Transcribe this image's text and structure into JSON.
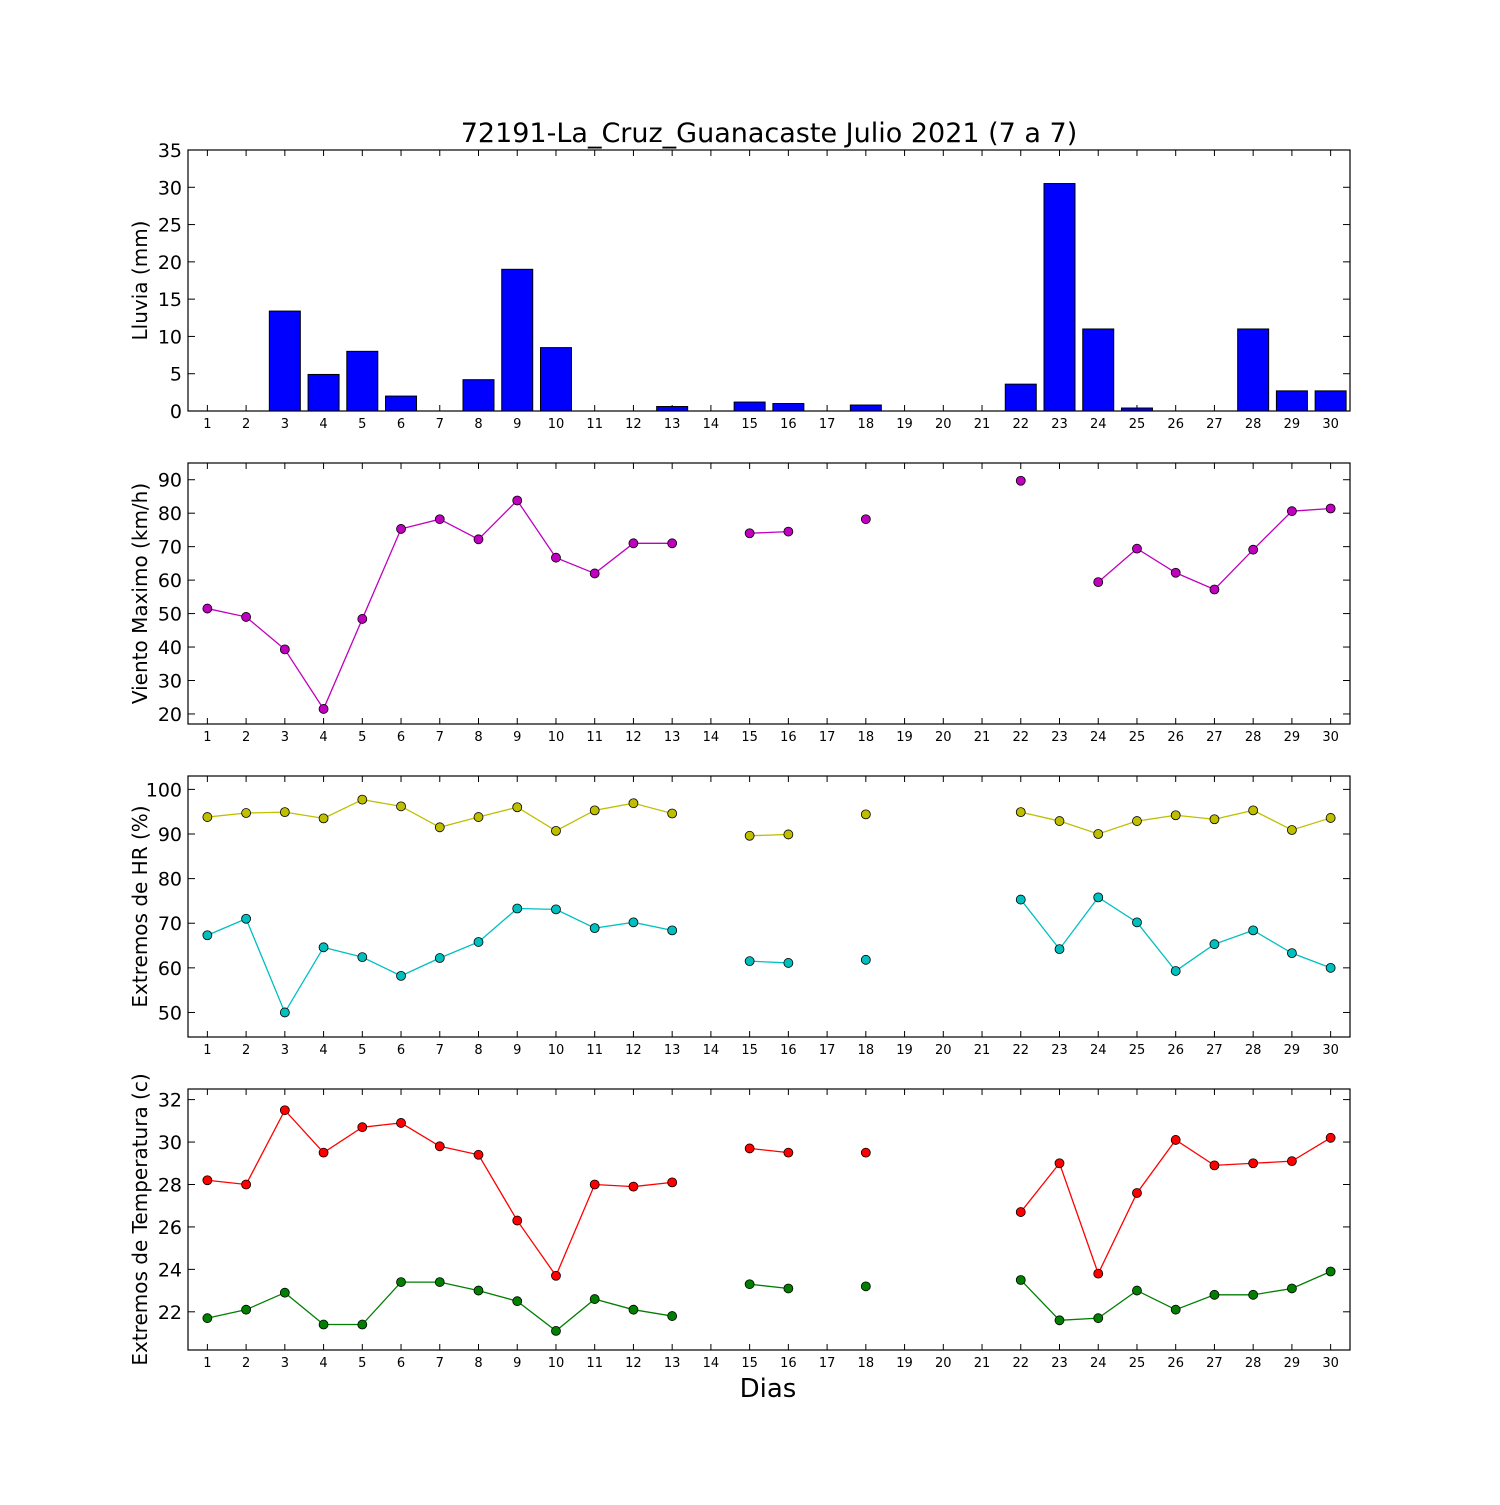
{
  "figure": {
    "title": "72191-La_Cruz_Guanacaste Julio 2021  (7 a 7)",
    "xlabel": "Dias"
  },
  "chart_data": [
    {
      "type": "bar",
      "ylabel": "Lluvia (mm)",
      "ylim": [
        0,
        35
      ],
      "yticks": [
        0,
        5,
        10,
        15,
        20,
        25,
        30,
        35
      ],
      "grid": false,
      "x": [
        1,
        2,
        3,
        4,
        5,
        6,
        7,
        8,
        9,
        10,
        11,
        12,
        13,
        14,
        15,
        16,
        17,
        18,
        19,
        20,
        21,
        22,
        23,
        24,
        25,
        26,
        27,
        28,
        29,
        30
      ],
      "values": [
        0,
        0,
        13.4,
        4.9,
        8.0,
        2.0,
        0,
        4.2,
        19.0,
        8.5,
        0,
        0,
        0.6,
        0,
        1.2,
        1.0,
        0,
        0.8,
        0,
        0,
        0,
        3.6,
        30.5,
        11.0,
        0.4,
        0,
        0,
        11.0,
        2.7,
        2.7
      ],
      "color": "#0000ff"
    },
    {
      "type": "line",
      "ylabel": "Viento Maximo (km/h)",
      "ylim": [
        17,
        95
      ],
      "yticks": [
        20,
        30,
        40,
        50,
        60,
        70,
        80,
        90
      ],
      "grid": false,
      "x": [
        1,
        2,
        3,
        4,
        5,
        6,
        7,
        8,
        9,
        10,
        11,
        12,
        13,
        14,
        15,
        16,
        17,
        18,
        19,
        20,
        21,
        22,
        23,
        24,
        25,
        26,
        27,
        28,
        29,
        30
      ],
      "series": [
        {
          "color": "#bf00bf",
          "values": [
            51.5,
            49,
            39.3,
            21.5,
            48.4,
            75.3,
            78.2,
            72.2,
            83.8,
            66.7,
            62,
            71,
            71,
            null,
            74,
            74.5,
            null,
            78.2,
            null,
            null,
            null,
            89.7,
            null,
            59.4,
            69.4,
            62.2,
            57.2,
            69.1,
            80.6,
            81.4
          ]
        }
      ]
    },
    {
      "type": "line",
      "ylabel": "Extremos de HR (%)",
      "ylim": [
        44.5,
        103
      ],
      "yticks": [
        50,
        60,
        70,
        80,
        90,
        100
      ],
      "grid": false,
      "x": [
        1,
        2,
        3,
        4,
        5,
        6,
        7,
        8,
        9,
        10,
        11,
        12,
        13,
        14,
        15,
        16,
        17,
        18,
        19,
        20,
        21,
        22,
        23,
        24,
        25,
        26,
        27,
        28,
        29,
        30
      ],
      "series": [
        {
          "color": "#bfbf00",
          "values": [
            93.8,
            94.7,
            94.9,
            93.5,
            97.7,
            96.2,
            91.5,
            93.8,
            96,
            90.7,
            95.3,
            96.9,
            94.6,
            null,
            89.6,
            89.9,
            null,
            94.4,
            null,
            null,
            null,
            94.9,
            92.9,
            90,
            92.9,
            94.2,
            93.3,
            95.3,
            90.9,
            93.6
          ]
        },
        {
          "color": "#00bfbf",
          "values": [
            67.3,
            71,
            50,
            64.6,
            62.4,
            58.2,
            62.2,
            65.8,
            73.3,
            73.1,
            68.9,
            70.2,
            68.4,
            null,
            61.5,
            61.1,
            null,
            61.8,
            null,
            null,
            null,
            75.3,
            64.2,
            75.8,
            70.2,
            59.3,
            65.3,
            68.4,
            63.3,
            60
          ]
        }
      ]
    },
    {
      "type": "line",
      "ylabel": "Extremos de Temperatura (c)",
      "ylim": [
        20.2,
        32.5
      ],
      "yticks": [
        22,
        24,
        26,
        28,
        30,
        32
      ],
      "grid": false,
      "x": [
        1,
        2,
        3,
        4,
        5,
        6,
        7,
        8,
        9,
        10,
        11,
        12,
        13,
        14,
        15,
        16,
        17,
        18,
        19,
        20,
        21,
        22,
        23,
        24,
        25,
        26,
        27,
        28,
        29,
        30
      ],
      "series": [
        {
          "color": "#ff0000",
          "values": [
            28.2,
            28,
            31.5,
            29.5,
            30.7,
            30.9,
            29.8,
            29.4,
            26.3,
            23.7,
            28,
            27.9,
            28.1,
            null,
            29.7,
            29.5,
            null,
            29.5,
            null,
            null,
            null,
            26.7,
            29,
            23.8,
            27.6,
            30.1,
            28.9,
            29,
            29.1,
            30.2
          ]
        },
        {
          "color": "#007f00",
          "values": [
            21.7,
            22.1,
            22.9,
            21.4,
            21.4,
            23.4,
            23.4,
            23,
            22.5,
            21.1,
            22.6,
            22.1,
            21.8,
            null,
            23.3,
            23.1,
            null,
            23.2,
            null,
            null,
            null,
            23.5,
            21.6,
            21.7,
            23,
            22.1,
            22.8,
            22.8,
            23.1,
            23.9
          ]
        }
      ]
    }
  ]
}
